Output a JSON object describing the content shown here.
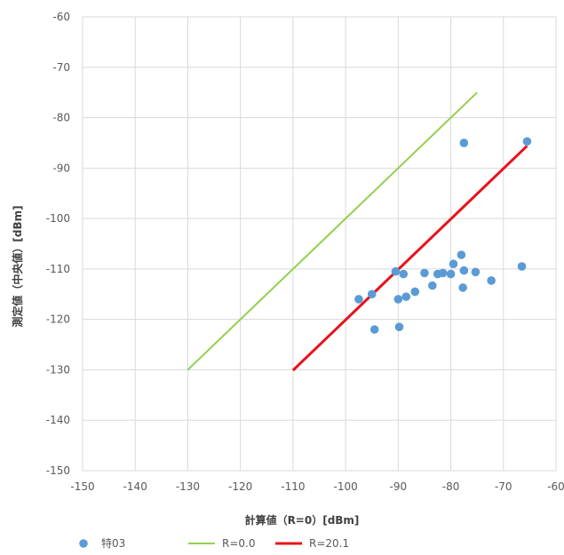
{
  "chart_data": {
    "type": "scatter",
    "xlabel": "計算値（R=0）[dBm]",
    "ylabel": "測定値（中央値）[dBm]",
    "xlim": [
      -150,
      -60
    ],
    "ylim": [
      -150,
      -60
    ],
    "x_ticks": [
      -150,
      -140,
      -130,
      -120,
      -110,
      -100,
      -90,
      -80,
      -70,
      -60
    ],
    "y_ticks": [
      -150,
      -140,
      -130,
      -120,
      -110,
      -100,
      -90,
      -80,
      -70,
      -60
    ],
    "grid": true,
    "legend_position": "bottom",
    "series": [
      {
        "name": "特03",
        "kind": "scatter",
        "color": "#5b9bd5",
        "points": [
          [
            -77.5,
            -85
          ],
          [
            -65.5,
            -84.7
          ],
          [
            -97.5,
            -116
          ],
          [
            -95,
            -115
          ],
          [
            -94.5,
            -122
          ],
          [
            -90.5,
            -110.5
          ],
          [
            -90,
            -116
          ],
          [
            -89.8,
            -121.5
          ],
          [
            -89,
            -111
          ],
          [
            -88.5,
            -115.5
          ],
          [
            -86.8,
            -114.5
          ],
          [
            -85,
            -110.8
          ],
          [
            -83.5,
            -113.3
          ],
          [
            -82.5,
            -111
          ],
          [
            -81.5,
            -110.8
          ],
          [
            -80,
            -111
          ],
          [
            -79.5,
            -109
          ],
          [
            -78,
            -107.2
          ],
          [
            -77.5,
            -110.3
          ],
          [
            -77.7,
            -113.7
          ],
          [
            -75.3,
            -110.6
          ],
          [
            -72.3,
            -112.3
          ],
          [
            -66.5,
            -109.5
          ]
        ]
      },
      {
        "name": "R=0.0",
        "kind": "line",
        "color": "#92d050",
        "points": [
          [
            -130,
            -130
          ],
          [
            -75,
            -75
          ]
        ]
      },
      {
        "name": "R=20.1",
        "kind": "line",
        "color": "#e8121c",
        "points": [
          [
            -110,
            -130.1
          ],
          [
            -65.5,
            -85.6
          ]
        ]
      }
    ]
  }
}
